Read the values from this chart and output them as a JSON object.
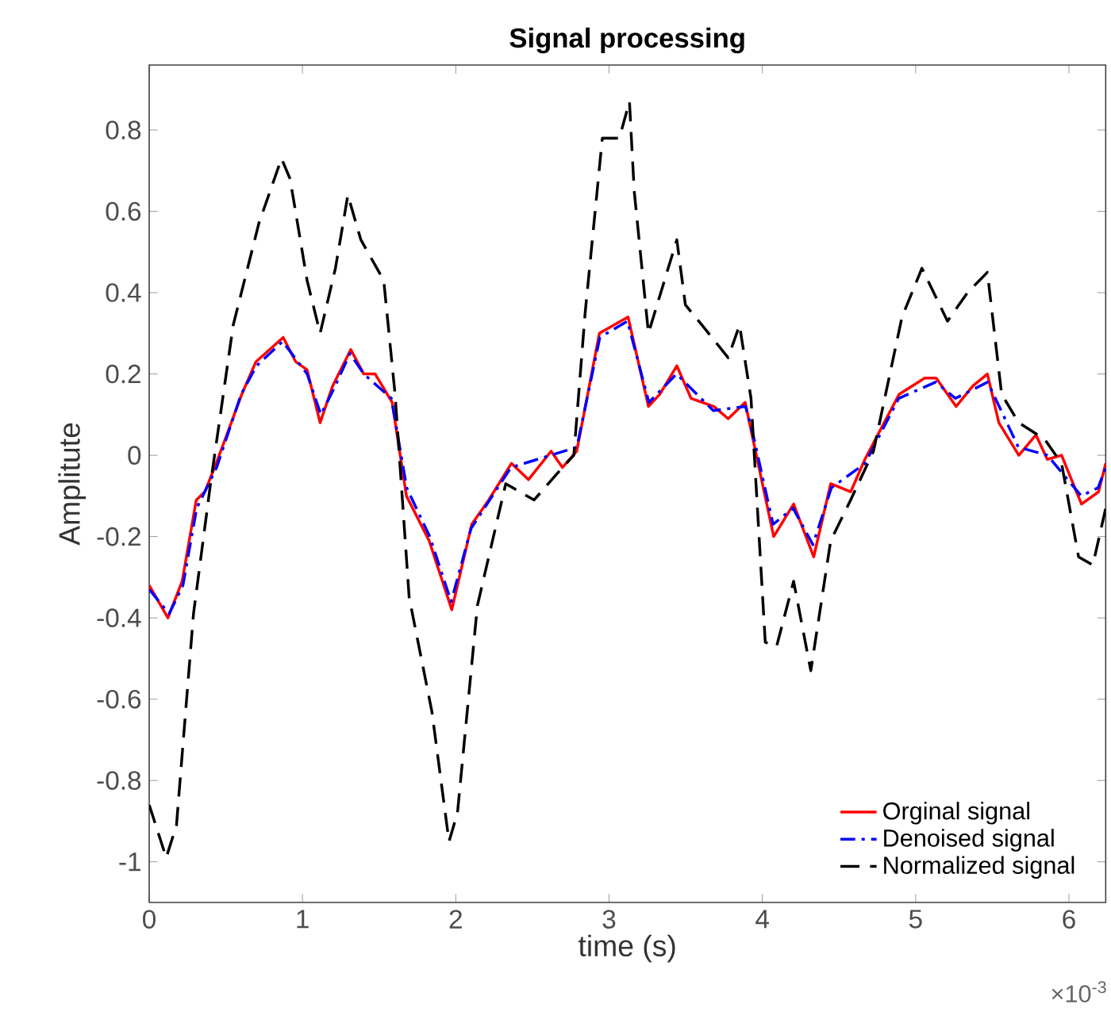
{
  "chart_data": {
    "type": "line",
    "title": "Signal processing",
    "xlabel": "time (s)",
    "ylabel": "Amplitute",
    "annotations": [
      "×10$^{-3}$"
    ],
    "xlim": [
      0,
      6.24
    ],
    "ylim": [
      -1.1,
      0.96
    ],
    "xticks": [
      0,
      1,
      2,
      3,
      4,
      5,
      6
    ],
    "yticks": [
      -1,
      -0.8,
      -0.6,
      -0.4,
      -0.2,
      0,
      0.2,
      0.4,
      0.6,
      0.8
    ],
    "grid": false,
    "legend": "bottom right",
    "series": [
      {
        "name": "Orginal signal",
        "color": "#ff0000",
        "line_style": "solid",
        "x": [
          0,
          0.122,
          0.215,
          0.307,
          0.363,
          0.437,
          0.604,
          0.696,
          0.874,
          0.956,
          1.03,
          1.115,
          1.196,
          1.315,
          1.4,
          1.474,
          1.585,
          1.678,
          1.826,
          1.974,
          2.104,
          2.215,
          2.363,
          2.474,
          2.622,
          2.696,
          2.789,
          2.937,
          3.03,
          3.124,
          3.257,
          3.331,
          3.442,
          3.535,
          3.684,
          3.777,
          3.888,
          3.944,
          4.074,
          4.204,
          4.335,
          4.446,
          4.576,
          4.669,
          4.892,
          5.059,
          5.134,
          5.264,
          5.372,
          5.468,
          5.543,
          5.673,
          5.785,
          5.859,
          5.952,
          6.082,
          6.193,
          6.24
        ],
        "values": [
          -0.32,
          -0.4,
          -0.31,
          -0.11,
          -0.09,
          -0.02,
          0.15,
          0.23,
          0.29,
          0.23,
          0.21,
          0.08,
          0.17,
          0.26,
          0.2,
          0.2,
          0.13,
          -0.1,
          -0.21,
          -0.38,
          -0.17,
          -0.11,
          -0.02,
          -0.06,
          0.01,
          -0.03,
          0.01,
          0.3,
          0.32,
          0.34,
          0.12,
          0.15,
          0.22,
          0.14,
          0.12,
          0.09,
          0.13,
          0.03,
          -0.2,
          -0.12,
          -0.25,
          -0.07,
          -0.09,
          -0.01,
          0.15,
          0.19,
          0.19,
          0.12,
          0.17,
          0.2,
          0.08,
          0,
          0.05,
          -0.01,
          0,
          -0.12,
          -0.09,
          -0.02
        ]
      },
      {
        "name": "Denoised signal",
        "color": "#0000ff",
        "line_style": "dashdot",
        "x": [
          0,
          0.13,
          0.22,
          0.31,
          0.44,
          0.6,
          0.7,
          0.87,
          1.03,
          1.12,
          1.2,
          1.31,
          1.4,
          1.58,
          1.68,
          1.83,
          1.97,
          2.1,
          2.36,
          2.62,
          2.79,
          2.94,
          3.12,
          3.26,
          3.44,
          3.68,
          3.89,
          3.94,
          4.07,
          4.2,
          4.33,
          4.45,
          4.67,
          4.89,
          5.13,
          5.26,
          5.47,
          5.67,
          5.86,
          6.08,
          6.19,
          6.24
        ],
        "values": [
          -0.33,
          -0.39,
          -0.32,
          -0.13,
          -0.03,
          0.15,
          0.22,
          0.28,
          0.2,
          0.1,
          0.16,
          0.25,
          0.2,
          0.14,
          -0.08,
          -0.2,
          -0.36,
          -0.18,
          -0.03,
          0,
          0.02,
          0.29,
          0.33,
          0.13,
          0.2,
          0.11,
          0.12,
          0.05,
          -0.17,
          -0.13,
          -0.22,
          -0.08,
          -0.02,
          0.14,
          0.18,
          0.14,
          0.18,
          0.02,
          0,
          -0.1,
          -0.08,
          -0.03
        ]
      },
      {
        "name": "Normalized signal",
        "color": "#000000",
        "line_style": "dashed",
        "x": [
          0,
          0.111,
          0.178,
          0.289,
          0.4,
          0.548,
          0.715,
          0.863,
          0.919,
          1.03,
          1.115,
          1.215,
          1.296,
          1.381,
          1.53,
          1.604,
          1.696,
          1.844,
          1.956,
          2.011,
          2.141,
          2.326,
          2.511,
          2.696,
          2.77,
          2.844,
          2.956,
          3.067,
          3.133,
          3.164,
          3.257,
          3.442,
          3.498,
          3.628,
          3.777,
          3.851,
          3.926,
          4.019,
          4.093,
          4.204,
          4.316,
          4.446,
          4.576,
          4.725,
          4.911,
          5.041,
          5.208,
          5.338,
          5.468,
          5.561,
          5.673,
          5.84,
          5.952,
          6.063,
          6.156,
          6.24
        ],
        "values": [
          -0.86,
          -0.99,
          -0.91,
          -0.39,
          -0.07,
          0.32,
          0.57,
          0.73,
          0.68,
          0.43,
          0.3,
          0.46,
          0.64,
          0.53,
          0.43,
          0.15,
          -0.35,
          -0.63,
          -0.95,
          -0.88,
          -0.37,
          -0.07,
          -0.11,
          -0.03,
          0,
          0.35,
          0.78,
          0.78,
          0.87,
          0.65,
          0.3,
          0.53,
          0.37,
          0.31,
          0.24,
          0.32,
          0.14,
          -0.46,
          -0.47,
          -0.31,
          -0.53,
          -0.21,
          -0.11,
          0.01,
          0.34,
          0.46,
          0.33,
          0.4,
          0.45,
          0.15,
          0.08,
          0.04,
          -0.02,
          -0.25,
          -0.27,
          -0.13
        ]
      }
    ]
  }
}
